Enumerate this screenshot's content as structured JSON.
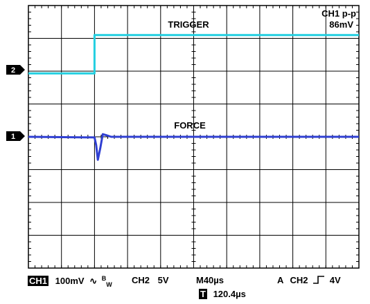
{
  "chart_data": {
    "type": "line",
    "x_unit": "µs",
    "y_unit": "div",
    "xlim": [
      -200,
      200
    ],
    "ylim": [
      -4,
      4
    ],
    "grid": true,
    "series": [
      {
        "name": "TRIGGER",
        "channel": "2",
        "color": "#22cfe0",
        "points": [
          [
            -200,
            1.93
          ],
          [
            -120,
            1.93
          ],
          [
            -120,
            3.1
          ],
          [
            200,
            3.1
          ]
        ]
      },
      {
        "name": "FORCE",
        "channel": "1",
        "color": "#2f3fd2",
        "points": [
          [
            -200,
            0
          ],
          [
            -120,
            -0.02
          ],
          [
            -118,
            -0.25
          ],
          [
            -116,
            -0.7
          ],
          [
            -113,
            -0.35
          ],
          [
            -110,
            0.08
          ],
          [
            -106,
            0.05
          ],
          [
            -100,
            0
          ],
          [
            200,
            0
          ]
        ]
      }
    ],
    "annotations": {
      "trigger_label": "TRIGGER",
      "force_label": "FORCE",
      "measure_label": "CH1 p-p",
      "measure_value": "86mV",
      "marker_ch2": "2",
      "marker_ch1": "1"
    }
  },
  "status": {
    "ch1_badge": "CH1",
    "ch1_scale": "100mV",
    "bw_symbol": "∿",
    "bw_b": "B",
    "bw_w": "W",
    "ch2": "CH2",
    "ch2_scale": "5V",
    "timebase": "M40µs",
    "trigger_mode": "A",
    "trigger_source": "CH2",
    "trigger_level": "4V",
    "t_badge": "T",
    "t_position": "120.4µs"
  }
}
